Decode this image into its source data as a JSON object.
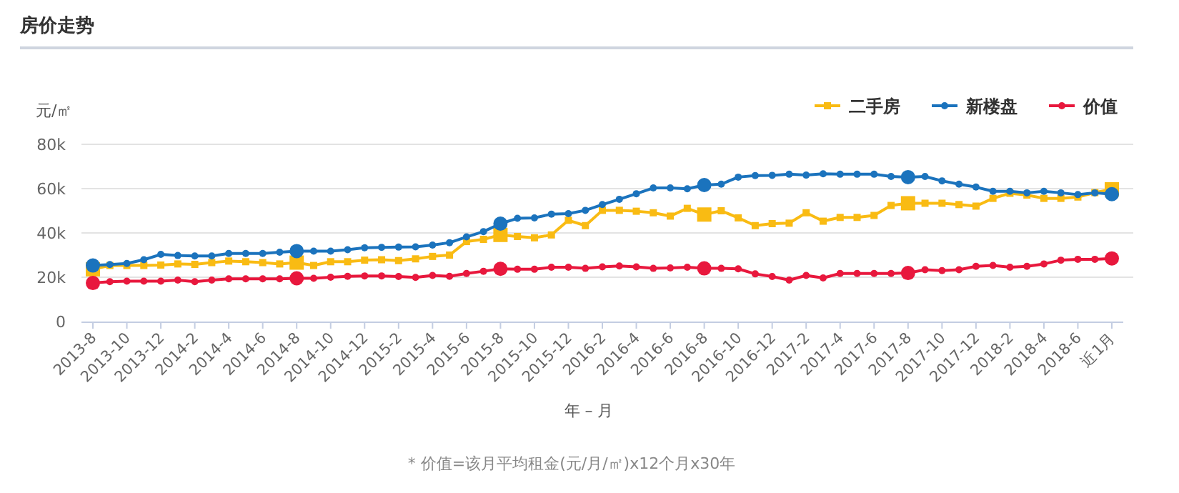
{
  "chart_data": {
    "type": "line",
    "title": "房价走势",
    "ylabel": "元/㎡",
    "xlabel": "年 – 月",
    "annotations": [
      "* 价值=该月平均租金(元/月/㎡)x12个月x30年"
    ],
    "categories": [
      "2013-8",
      null,
      "2013-10",
      null,
      "2013-12",
      null,
      "2014-2",
      null,
      "2014-4",
      null,
      "2014-6",
      null,
      "2014-8",
      null,
      "2014-10",
      null,
      "2014-12",
      null,
      "2015-2",
      null,
      "2015-4",
      null,
      "2015-6",
      null,
      "2015-8",
      null,
      "2015-10",
      null,
      "2015-12",
      null,
      "2016-2",
      null,
      "2016-4",
      null,
      "2016-6",
      null,
      "2016-8",
      null,
      "2016-10",
      null,
      "2016-12",
      null,
      "2017-2",
      null,
      "2017-4",
      null,
      "2017-6",
      null,
      "2017-8",
      null,
      "2017-10",
      null,
      "2017-12",
      null,
      "2018-2",
      null,
      "2018-4",
      null,
      "2018-6",
      null,
      "近1月"
    ],
    "series": [
      {
        "name": "二手房",
        "color": "#f9bb13",
        "marker": "square",
        "values": [
          23600,
          25300,
          25300,
          25300,
          25500,
          26000,
          25800,
          26600,
          27300,
          27000,
          26600,
          26000,
          26600,
          25300,
          27000,
          27000,
          27700,
          27900,
          27500,
          28300,
          29400,
          30000,
          36100,
          37100,
          39100,
          38400,
          37800,
          39100,
          45700,
          43300,
          50200,
          50200,
          49800,
          49100,
          47600,
          51100,
          48300,
          50000,
          46800,
          43300,
          44200,
          44400,
          49100,
          45300,
          47000,
          47000,
          47900,
          52400,
          53400,
          53400,
          53400,
          52800,
          52100,
          55600,
          57900,
          57100,
          55600,
          55600,
          56200,
          58200,
          59700
        ]
      },
      {
        "name": "新楼盘",
        "color": "#1b73bd",
        "marker": "circle",
        "values": [
          25300,
          25700,
          26200,
          27900,
          30300,
          29800,
          29600,
          29600,
          30700,
          30700,
          30700,
          31300,
          31800,
          31800,
          31800,
          32400,
          33300,
          33500,
          33600,
          33700,
          34500,
          35600,
          38200,
          40600,
          44200,
          46600,
          46800,
          48500,
          48700,
          50200,
          52800,
          55200,
          57700,
          60300,
          60300,
          59900,
          61600,
          62000,
          65200,
          65900,
          66000,
          66500,
          66100,
          66700,
          66500,
          66500,
          66500,
          65500,
          65200,
          65500,
          63500,
          62000,
          60700,
          58800,
          58800,
          58100,
          58800,
          58100,
          57300,
          58100,
          57500
        ]
      },
      {
        "name": "价值",
        "color": "#e8183d",
        "marker": "circle",
        "values": [
          17400,
          18000,
          18200,
          18200,
          18200,
          18700,
          18000,
          18700,
          19300,
          19300,
          19300,
          19300,
          19500,
          19500,
          20000,
          20400,
          20600,
          20600,
          20300,
          19900,
          20800,
          20400,
          21700,
          22700,
          23800,
          23600,
          23600,
          24500,
          24500,
          24000,
          24700,
          25100,
          24700,
          24000,
          24200,
          24500,
          24000,
          24000,
          23800,
          21500,
          20300,
          18700,
          20800,
          19700,
          21700,
          21700,
          21700,
          21700,
          21900,
          23400,
          23000,
          23400,
          24900,
          25300,
          24500,
          24900,
          26000,
          27700,
          28100,
          28100,
          28500
        ]
      }
    ],
    "ylim": [
      0,
      80000
    ],
    "yticks": [
      0,
      {
        "value": 20000,
        "label": "20k"
      },
      {
        "value": 40000,
        "label": "40k"
      },
      {
        "value": 60000,
        "label": "60k"
      },
      {
        "value": 80000,
        "label": "80k"
      }
    ],
    "grid": "y",
    "legend": "top right",
    "line_style": "solid"
  }
}
